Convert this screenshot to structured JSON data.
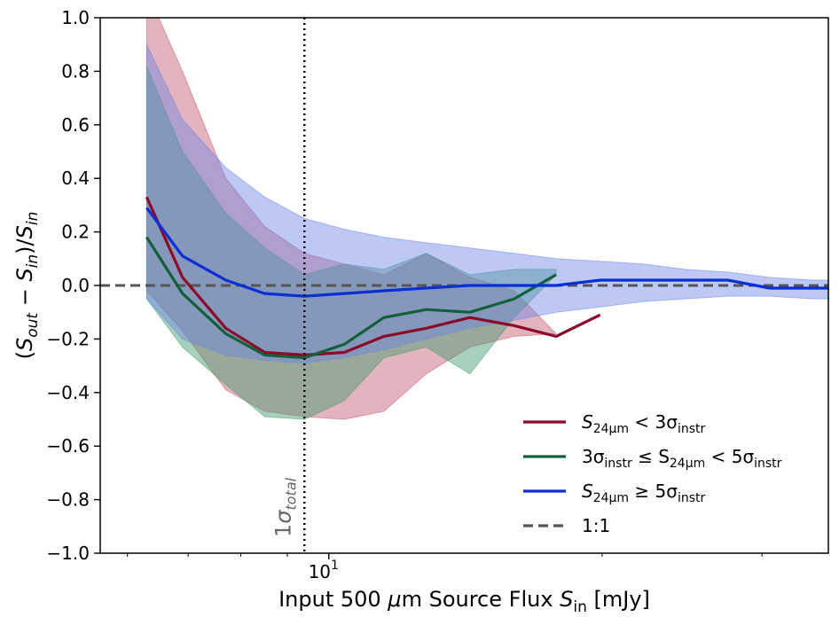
{
  "chart_data": {
    "type": "line",
    "x_scale": "log",
    "xlim": [
      5.6,
      35.5
    ],
    "ylim": [
      -1.0,
      1.0
    ],
    "xlabel": "Input 500 μm Source Flux S_in [mJy]",
    "ylabel": "(S_out − S_in)/S_in",
    "x_tick_labels": [
      {
        "value": 10,
        "label": "10",
        "sup": "1"
      }
    ],
    "y_ticks": [
      -1.0,
      -0.8,
      -0.6,
      -0.4,
      -0.2,
      0.0,
      0.2,
      0.4,
      0.6,
      0.8,
      1.0
    ],
    "y_tick_labels": [
      "−1.0",
      "−0.8",
      "−0.6",
      "−0.4",
      "−0.2",
      "0.0",
      "0.2",
      "0.4",
      "0.6",
      "0.8",
      "1.0"
    ],
    "reference_line": {
      "label": "1:1",
      "y": 0.0,
      "color": "#555555"
    },
    "vertical_line": {
      "label": "1σ",
      "label_sub": "total",
      "x": 9.4,
      "color": "#000000"
    },
    "series": [
      {
        "name": "S24μm < 3σinstr",
        "color": "#8b0a2a",
        "fill_color": "#c0586e",
        "x": [
          6.3,
          6.9,
          7.7,
          8.5,
          9.4,
          10.4,
          11.5,
          12.8,
          14.3,
          16.0,
          17.8,
          19.9,
          22.2
        ],
        "y": [
          0.33,
          0.03,
          -0.16,
          -0.25,
          -0.26,
          -0.25,
          -0.19,
          -0.16,
          -0.12,
          -0.15,
          -0.19,
          -0.11,
          null
        ],
        "y_upper": [
          1.1,
          0.8,
          0.4,
          0.22,
          0.12,
          0.08,
          0.04,
          0.12,
          0.03,
          -0.02,
          -0.18,
          null,
          null
        ],
        "y_lower": [
          -0.02,
          -0.17,
          -0.39,
          -0.47,
          -0.49,
          -0.5,
          -0.47,
          -0.33,
          -0.23,
          -0.19,
          -0.18,
          null,
          null
        ]
      },
      {
        "name": "3σinstr ≤ S24μm < 5σinstr",
        "color": "#11603a",
        "fill_color": "#3f9a6c",
        "x": [
          6.3,
          6.9,
          7.7,
          8.5,
          9.4,
          10.4,
          11.5,
          12.8,
          14.3,
          16.0,
          17.8,
          19.9
        ],
        "y": [
          0.18,
          -0.03,
          -0.18,
          -0.26,
          -0.27,
          -0.22,
          -0.12,
          -0.09,
          -0.1,
          -0.05,
          0.04,
          null
        ],
        "y_upper": [
          0.82,
          0.5,
          0.27,
          0.14,
          0.04,
          0.08,
          0.06,
          0.12,
          0.04,
          0.06,
          0.06,
          null
        ],
        "y_lower": [
          -0.05,
          -0.23,
          -0.37,
          -0.49,
          -0.5,
          -0.43,
          -0.27,
          -0.23,
          -0.33,
          -0.12,
          0.04,
          null
        ]
      },
      {
        "name": "S24μm ≥ 5σinstr",
        "color": "#0a2fd4",
        "fill_color": "#6c86e6",
        "x": [
          6.3,
          6.9,
          7.7,
          8.5,
          9.4,
          10.4,
          11.5,
          12.8,
          14.3,
          16.0,
          17.8,
          19.9,
          22.2,
          24.7,
          27.5,
          30.6,
          34.1,
          35.5
        ],
        "y": [
          0.29,
          0.11,
          0.02,
          -0.03,
          -0.04,
          -0.03,
          -0.02,
          -0.01,
          0.0,
          0.0,
          0.0,
          0.02,
          0.02,
          0.02,
          0.02,
          -0.01,
          -0.01,
          -0.01
        ],
        "y_upper": [
          0.9,
          0.62,
          0.44,
          0.33,
          0.25,
          0.21,
          0.18,
          0.16,
          0.14,
          0.12,
          0.1,
          0.09,
          0.08,
          0.06,
          0.05,
          0.03,
          0.02,
          0.02
        ],
        "y_lower": [
          -0.05,
          -0.2,
          -0.26,
          -0.28,
          -0.29,
          -0.27,
          -0.24,
          -0.2,
          -0.16,
          -0.13,
          -0.1,
          -0.08,
          -0.06,
          -0.05,
          -0.04,
          -0.04,
          -0.05,
          -0.05
        ]
      }
    ],
    "legend": {
      "position": "lower-right",
      "entries": [
        {
          "label": "S",
          "sub": "24μm",
          "rest": " < 3σ",
          "sub2": "instr"
        },
        {
          "label": "3σ",
          "sub": "instr",
          "rest": " ≤ S",
          "sub2": "24μm",
          "rest2": " < 5σ",
          "sub3": "instr"
        },
        {
          "label": "S",
          "sub": "24μm",
          "rest": " ≥ 5σ",
          "sub2": "instr"
        },
        {
          "label": "1:1"
        }
      ]
    }
  }
}
